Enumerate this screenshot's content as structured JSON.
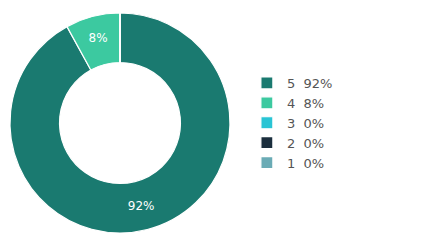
{
  "chart_data": {
    "type": "donut",
    "categories": [
      "5  92%",
      "4  8%",
      "3  0%",
      "2  0%",
      "1  0%"
    ],
    "values": [
      92,
      8,
      1e-05,
      1e-05,
      1e-05
    ],
    "value_labels": [
      "92%",
      "8%",
      null,
      null,
      null
    ],
    "data_labels": true,
    "colors": [
      "#1a7a70",
      "#3cc9a0",
      "#29c4d4",
      "#1a2e3d",
      "#6aabb5"
    ],
    "legend": "right"
  }
}
